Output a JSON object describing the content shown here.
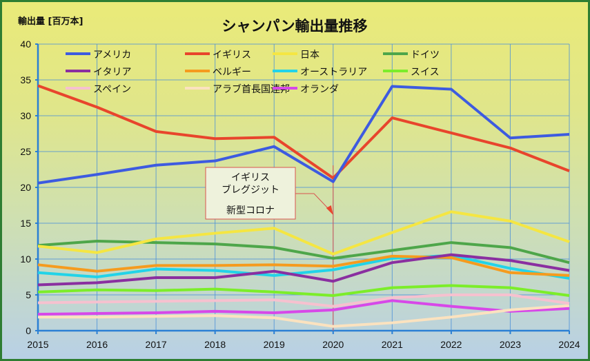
{
  "chart_data": {
    "type": "line",
    "title": "シャンパン輸出量推移",
    "ylabel": "輸出量 [百万本]",
    "xlabel": "",
    "ylim": [
      0,
      40
    ],
    "yticks": [
      0,
      5,
      10,
      15,
      20,
      25,
      30,
      35,
      40
    ],
    "x": [
      "2015",
      "2016",
      "2017",
      "2018",
      "2019",
      "2020",
      "2021",
      "2022",
      "2023",
      "2024"
    ],
    "grid": true,
    "legend_position": "top-left",
    "series": [
      {
        "name": "アメリカ",
        "color": "#3d5be0",
        "values": [
          20.6,
          21.8,
          23.1,
          23.7,
          25.7,
          20.8,
          34.1,
          33.7,
          26.9,
          27.4
        ]
      },
      {
        "name": "イギリス",
        "color": "#e8452c",
        "values": [
          34.2,
          31.2,
          27.8,
          26.8,
          27.0,
          21.3,
          29.7,
          27.6,
          25.5,
          22.3
        ]
      },
      {
        "name": "日本",
        "color": "#f5e642",
        "values": [
          11.8,
          10.9,
          12.8,
          13.6,
          14.3,
          10.7,
          13.7,
          16.6,
          15.3,
          12.4
        ]
      },
      {
        "name": "ドイツ",
        "color": "#4ea64a",
        "values": [
          11.9,
          12.5,
          12.3,
          12.1,
          11.6,
          10.1,
          11.2,
          12.3,
          11.6,
          9.5
        ]
      },
      {
        "name": "イタリア",
        "color": "#8a2fa0",
        "values": [
          6.4,
          6.7,
          7.4,
          7.4,
          8.3,
          6.9,
          9.5,
          10.6,
          9.8,
          8.4
        ]
      },
      {
        "name": "ベルギー",
        "color": "#f59b1e",
        "values": [
          9.2,
          8.3,
          9.1,
          9.1,
          9.2,
          9.0,
          10.4,
          10.2,
          8.1,
          7.7
        ]
      },
      {
        "name": "オーストラリア",
        "color": "#22d3e8",
        "values": [
          8.1,
          7.5,
          8.6,
          8.4,
          7.7,
          8.5,
          10.1,
          10.5,
          8.7,
          7.3
        ]
      },
      {
        "name": "スイス",
        "color": "#7ced2a",
        "values": [
          5.4,
          5.7,
          5.6,
          5.8,
          5.4,
          4.9,
          6.0,
          6.3,
          6.0,
          4.9
        ]
      },
      {
        "name": "スペイン",
        "color": "#f6c1cf",
        "values": [
          3.9,
          4.0,
          4.1,
          4.2,
          4.3,
          3.4,
          4.6,
          5.0,
          5.0,
          3.8
        ]
      },
      {
        "name": "アラブ首長国連邦",
        "color": "#fbe2bf",
        "values": [
          1.9,
          1.9,
          2.0,
          2.1,
          1.8,
          0.6,
          1.1,
          1.9,
          2.9,
          3.5
        ]
      },
      {
        "name": "オランダ",
        "color": "#d748e8",
        "values": [
          2.3,
          2.4,
          2.5,
          2.7,
          2.5,
          2.9,
          4.2,
          3.4,
          2.7,
          3.1
        ]
      }
    ],
    "annotation": {
      "lines": [
        "イギリス",
        "ブレグジット",
        "新型コロナ"
      ],
      "target_x": "2020"
    }
  }
}
